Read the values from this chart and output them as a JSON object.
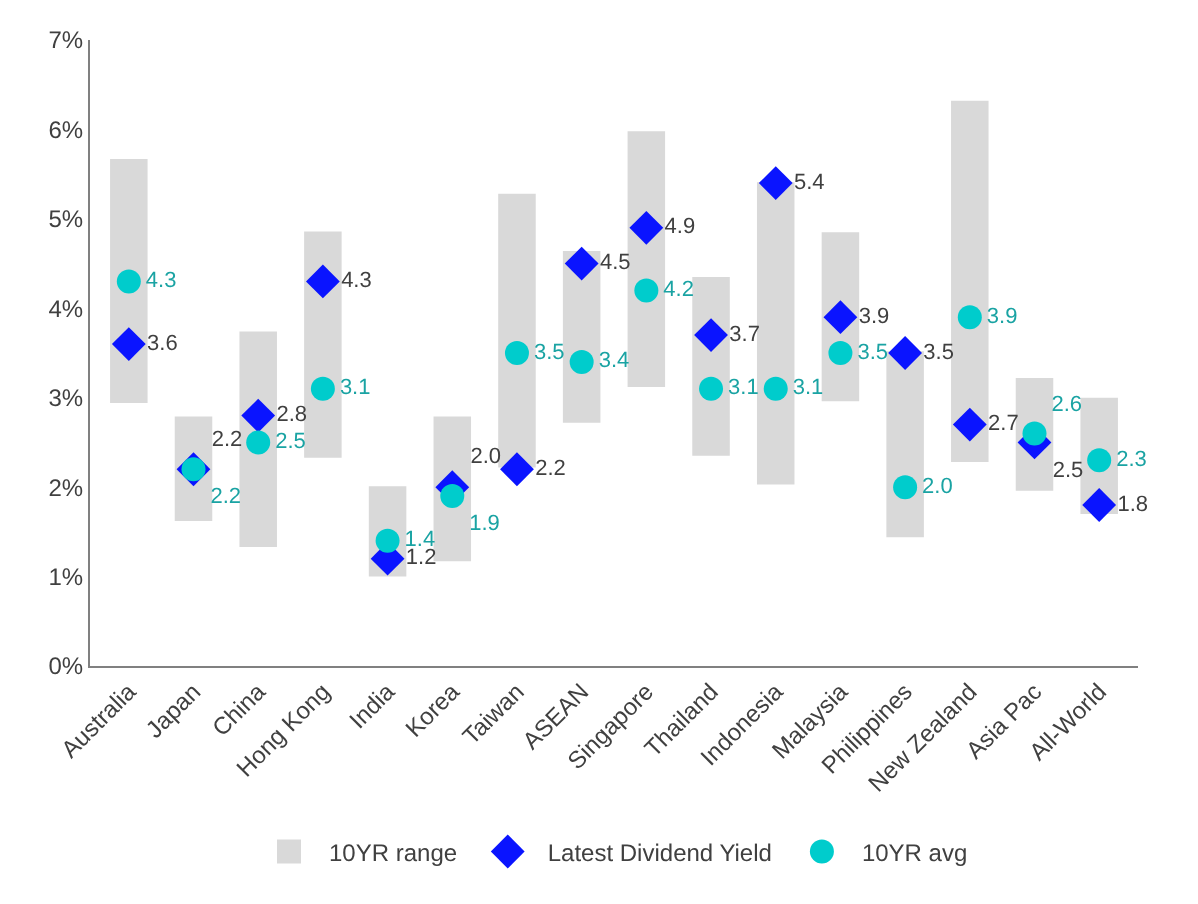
{
  "chart_data": {
    "type": "scatter",
    "categories": [
      "Australia",
      "Japan",
      "China",
      "Hong Kong",
      "India",
      "Korea",
      "Taiwan",
      "ASEAN",
      "Singapore",
      "Thailand",
      "Indonesia",
      "Malaysia",
      "Philippines",
      "New Zealand",
      "Asia Pac",
      "All-World"
    ],
    "series": [
      {
        "name": "10YR range",
        "type": "bar",
        "color": "#d9d9d9",
        "base": [
          2.94,
          1.62,
          1.33,
          2.33,
          1.0,
          1.17,
          2.22,
          2.72,
          3.12,
          2.35,
          2.03,
          2.96,
          1.44,
          2.28,
          1.96,
          1.7
        ],
        "values": [
          2.73,
          1.17,
          2.41,
          2.53,
          1.01,
          1.62,
          3.06,
          1.92,
          2.86,
          2.0,
          3.38,
          1.89,
          2.08,
          4.04,
          1.26,
          1.3
        ]
      },
      {
        "name": "Latest Dividend Yield",
        "marker": "diamond",
        "color": "#0a14ff",
        "values": [
          3.6,
          2.2,
          2.8,
          4.3,
          1.2,
          2.0,
          2.2,
          4.5,
          4.9,
          3.7,
          5.4,
          3.9,
          3.5,
          2.7,
          2.5,
          1.8
        ],
        "value_labels": [
          "3.6",
          "2.2",
          "2.8",
          "4.3",
          "1.2",
          "2.0",
          "2.2",
          "4.5",
          "4.9",
          "3.7",
          "5.4",
          "3.9",
          "3.5",
          "2.7",
          "2.5",
          "1.8"
        ]
      },
      {
        "name": "10YR avg",
        "marker": "circle",
        "color": "#00cccc",
        "values": [
          4.3,
          2.2,
          2.5,
          3.1,
          1.4,
          1.9,
          3.5,
          3.4,
          4.2,
          3.1,
          3.1,
          3.5,
          2.0,
          3.9,
          2.6,
          2.3
        ],
        "value_labels": [
          "4.3",
          "2.2",
          "2.5",
          "3.1",
          "1.4",
          "1.9",
          "3.5",
          "3.4",
          "4.2",
          "3.1",
          "3.1",
          "3.5",
          "2.0",
          "3.9",
          "2.6",
          "2.3"
        ]
      }
    ],
    "ylim": [
      0,
      7
    ],
    "yticks": [
      {
        "value": 0,
        "label": "0%"
      },
      {
        "value": 1,
        "label": "1%"
      },
      {
        "value": 2,
        "label": "2%"
      },
      {
        "value": 3,
        "label": "3%"
      },
      {
        "value": 4,
        "label": "4%"
      },
      {
        "value": 5,
        "label": "5%"
      },
      {
        "value": 6,
        "label": "6%"
      },
      {
        "value": 7,
        "label": "7%"
      }
    ],
    "legend": "bottom"
  }
}
